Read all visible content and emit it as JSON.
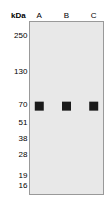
{
  "chart_data": {
    "type": "scatter",
    "categories": [
      "A",
      "B",
      "C"
    ],
    "values": [
      68,
      68,
      68
    ],
    "color": "#1a1a1a",
    "marker": "square",
    "log": "y",
    "ylim": [
      13.5,
      320
    ],
    "yticks": [
      250,
      130,
      70,
      51,
      38,
      28,
      19,
      16
    ],
    "ylabel": "kDa",
    "grid": false
  }
}
